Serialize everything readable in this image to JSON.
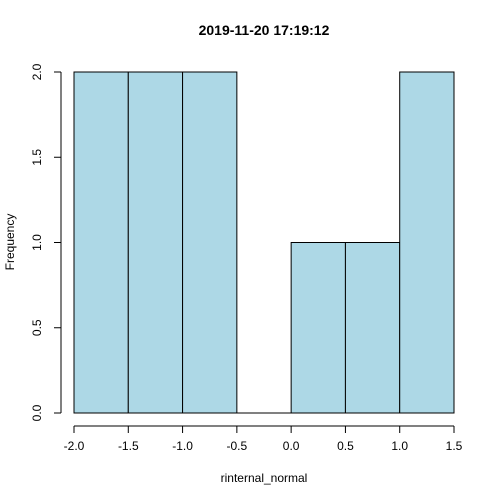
{
  "chart_data": {
    "type": "bar",
    "title": "2019-11-20 17:19:12",
    "xlabel": "rinternal_normal",
    "ylabel": "Frequency",
    "bin_edges": [
      -2.0,
      -1.5,
      -1.0,
      -0.5,
      0.0,
      0.5,
      1.0,
      1.5
    ],
    "values": [
      2,
      2,
      2,
      0,
      1,
      1,
      2
    ],
    "xlim": [
      -2.0,
      1.5
    ],
    "ylim": [
      0,
      2
    ],
    "x_ticks": [
      -2.0,
      -1.5,
      -1.0,
      -0.5,
      0.0,
      0.5,
      1.0,
      1.5
    ],
    "x_tick_labels": [
      "-2.0",
      "-1.5",
      "-1.0",
      "-0.5",
      "0.0",
      "0.5",
      "1.0",
      "1.5"
    ],
    "y_ticks": [
      0,
      0.5,
      1.0,
      1.5,
      2.0
    ],
    "y_tick_labels": [
      "0.0",
      "0.5",
      "1.0",
      "1.5",
      "2.0"
    ],
    "bar_color": "#add8e6",
    "grid": false
  }
}
